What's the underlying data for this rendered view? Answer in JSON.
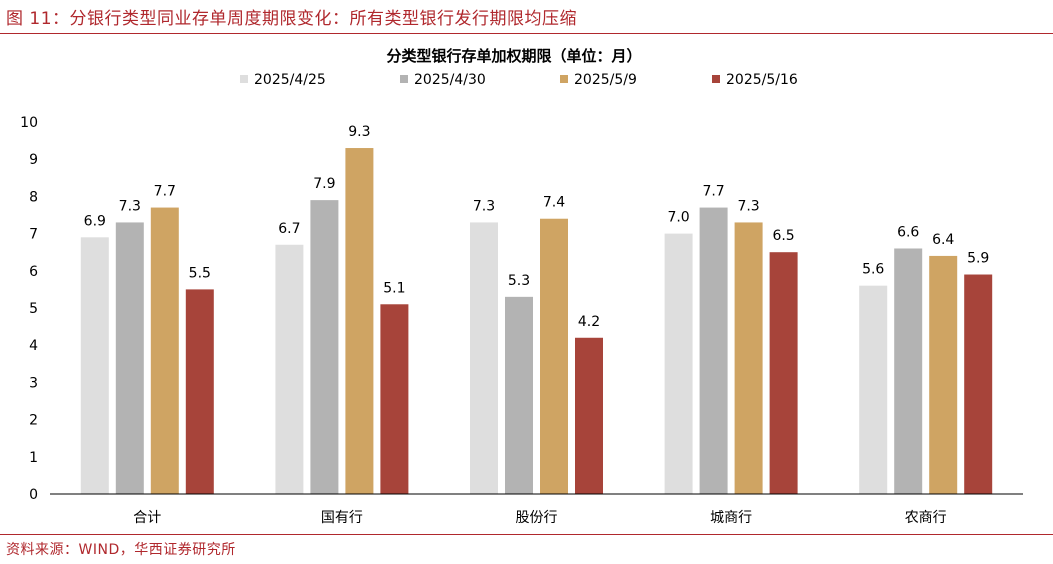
{
  "figure": {
    "title": "图 11：分银行类型同业存单周度期限变化：所有类型银行发行期限均压缩",
    "source": "资料来源：WIND，华西证券研究所"
  },
  "colors": {
    "accent": "#b0282d",
    "series": [
      "#dedede",
      "#b3b3b3",
      "#cfa463",
      "#a7443a"
    ]
  },
  "chart_data": {
    "type": "bar",
    "title": "分类型银行存单加权期限（单位：月）",
    "categories": [
      "合计",
      "国有行",
      "股份行",
      "城商行",
      "农商行"
    ],
    "series": [
      {
        "name": "2025/4/25",
        "values": [
          6.9,
          6.7,
          7.3,
          7.0,
          5.6
        ]
      },
      {
        "name": "2025/4/30",
        "values": [
          7.3,
          7.9,
          5.3,
          7.7,
          6.6
        ]
      },
      {
        "name": "2025/5/9",
        "values": [
          7.7,
          9.3,
          7.4,
          7.3,
          6.4
        ]
      },
      {
        "name": "2025/5/16",
        "values": [
          5.5,
          5.1,
          4.2,
          6.5,
          5.9
        ]
      }
    ],
    "ylim": [
      0,
      10
    ],
    "yticks": [
      0,
      1,
      2,
      3,
      4,
      5,
      6,
      7,
      8,
      9,
      10
    ],
    "grid": false,
    "legend_position": "top"
  }
}
